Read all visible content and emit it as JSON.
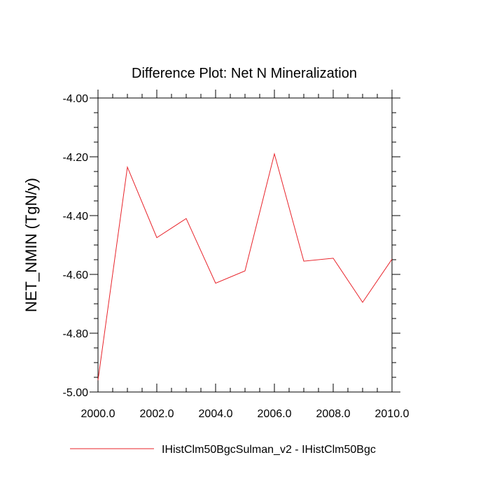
{
  "chart_data": {
    "type": "line",
    "title": "Difference Plot: Net N Mineralization",
    "xlabel": "",
    "ylabel": "NET_NMIN  (TgN/y)",
    "xlim": [
      2000,
      2010
    ],
    "ylim": [
      -5.0,
      -4.0
    ],
    "xticks": [
      2000,
      2002,
      2004,
      2006,
      2008,
      2010
    ],
    "xtick_labels": [
      "2000.0",
      "2002.0",
      "2004.0",
      "2006.0",
      "2008.0",
      "2010.0"
    ],
    "yticks": [
      -4.0,
      -4.2,
      -4.4,
      -4.6,
      -4.8,
      -5.0
    ],
    "ytick_labels": [
      "-4.00",
      "-4.20",
      "-4.40",
      "-4.60",
      "-4.80",
      "-5.00"
    ],
    "grid": false,
    "legend_position": "bottom",
    "series": [
      {
        "name": "IHistClm50BgcSulman_v2 - IHistClm50Bgc",
        "color": "#e8232a",
        "x": [
          2000,
          2001,
          2002,
          2003,
          2004,
          2005,
          2006,
          2007,
          2008,
          2009,
          2010
        ],
        "y": [
          -4.96,
          -4.235,
          -4.475,
          -4.41,
          -4.63,
          -4.588,
          -4.19,
          -4.555,
          -4.545,
          -4.695,
          -4.548
        ]
      }
    ]
  }
}
